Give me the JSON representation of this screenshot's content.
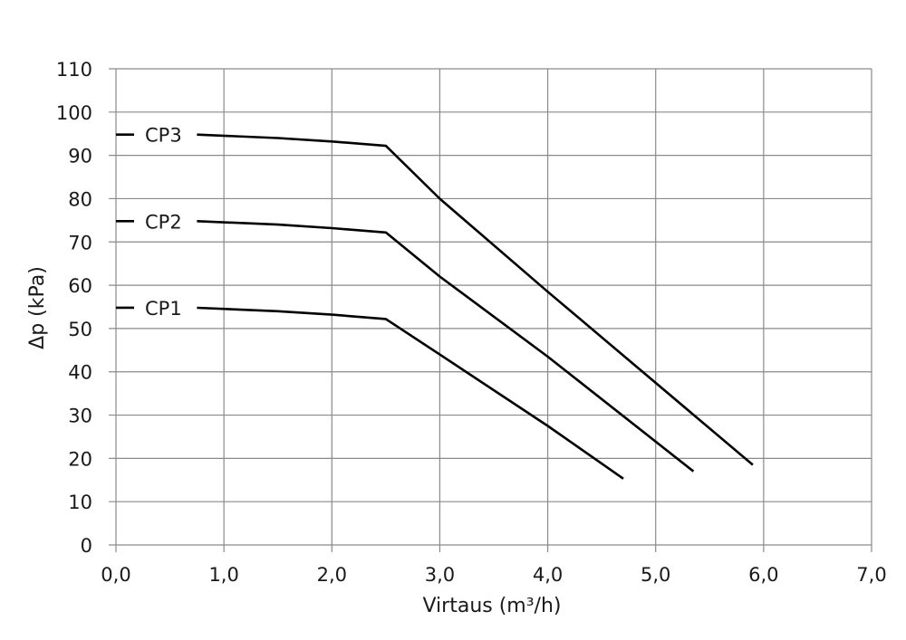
{
  "chart_data": {
    "type": "line",
    "xlabel": "Virtaus (m³/h)",
    "ylabel": "Δp (kPa)",
    "xlim": [
      0,
      7
    ],
    "ylim": [
      0,
      110
    ],
    "grid": true,
    "x_ticks": [
      0,
      1,
      2,
      3,
      4,
      5,
      6,
      7
    ],
    "x_tick_labels": [
      "0,0",
      "1,0",
      "2,0",
      "3,0",
      "4,0",
      "5,0",
      "6,0",
      "7,0"
    ],
    "y_ticks": [
      0,
      10,
      20,
      30,
      40,
      50,
      60,
      70,
      80,
      90,
      100,
      110
    ],
    "y_tick_labels": [
      "0",
      "10",
      "20",
      "30",
      "40",
      "50",
      "60",
      "70",
      "80",
      "90",
      "100",
      "110"
    ],
    "series": [
      {
        "name": "CP1",
        "x": [
          0.75,
          1.5,
          2.0,
          2.5,
          3.0,
          4.0,
          4.7
        ],
        "y": [
          54.8,
          54.0,
          53.2,
          52.2,
          44.0,
          27.5,
          15.3
        ]
      },
      {
        "name": "CP2",
        "x": [
          0.75,
          1.5,
          2.0,
          2.5,
          3.0,
          4.0,
          5.35
        ],
        "y": [
          74.8,
          74.0,
          73.2,
          72.2,
          62.0,
          43.5,
          17.0
        ]
      },
      {
        "name": "CP3",
        "x": [
          0.75,
          1.5,
          2.0,
          2.5,
          3.0,
          4.0,
          5.9
        ],
        "y": [
          94.8,
          94.0,
          93.2,
          92.2,
          80.0,
          58.5,
          18.5
        ]
      }
    ],
    "legend": "inline labels at left"
  }
}
